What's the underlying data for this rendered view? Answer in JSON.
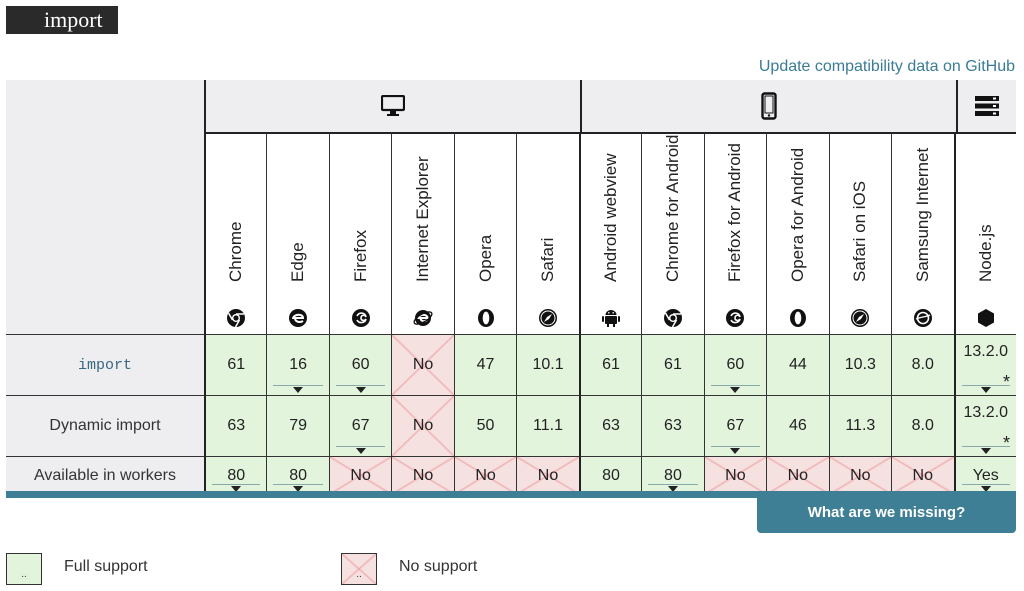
{
  "title": "import",
  "github_link": "Update compatibility data on GitHub",
  "groups": {
    "desktop_icon": "desktop-icon",
    "mobile_icon": "mobile-icon",
    "server_icon": "server-icon"
  },
  "browsers": [
    {
      "name": "Chrome",
      "icon": "chrome-icon"
    },
    {
      "name": "Edge",
      "icon": "edge-icon"
    },
    {
      "name": "Firefox",
      "icon": "firefox-icon"
    },
    {
      "name": "Internet Explorer",
      "icon": "ie-icon"
    },
    {
      "name": "Opera",
      "icon": "opera-icon"
    },
    {
      "name": "Safari",
      "icon": "safari-icon"
    },
    {
      "name": "Android webview",
      "icon": "android-icon"
    },
    {
      "name": "Chrome for Android",
      "icon": "chrome-icon"
    },
    {
      "name": "Firefox for Android",
      "icon": "firefox-icon"
    },
    {
      "name": "Opera for Android",
      "icon": "opera-icon"
    },
    {
      "name": "Safari on iOS",
      "icon": "safari-icon"
    },
    {
      "name": "Samsung Internet",
      "icon": "samsung-icon"
    },
    {
      "name": "Node.js",
      "icon": "nodejs-icon"
    }
  ],
  "rows": [
    {
      "label": "import",
      "code": true,
      "cells": [
        {
          "v": "61",
          "s": "y"
        },
        {
          "v": "16",
          "s": "y",
          "arrow": true
        },
        {
          "v": "60",
          "s": "y",
          "arrow": true
        },
        {
          "v": "No",
          "s": "n"
        },
        {
          "v": "47",
          "s": "y"
        },
        {
          "v": "10.1",
          "s": "y"
        },
        {
          "v": "61",
          "s": "y"
        },
        {
          "v": "61",
          "s": "y"
        },
        {
          "v": "60",
          "s": "y",
          "arrow": true
        },
        {
          "v": "44",
          "s": "y"
        },
        {
          "v": "10.3",
          "s": "y"
        },
        {
          "v": "8.0",
          "s": "y"
        },
        {
          "v": "13.2.0",
          "s": "y",
          "arrow": true,
          "star": "*"
        }
      ]
    },
    {
      "label": "Dynamic import",
      "code": false,
      "cells": [
        {
          "v": "63",
          "s": "y"
        },
        {
          "v": "79",
          "s": "y"
        },
        {
          "v": "67",
          "s": "y",
          "arrow": true
        },
        {
          "v": "No",
          "s": "n"
        },
        {
          "v": "50",
          "s": "y"
        },
        {
          "v": "11.1",
          "s": "y"
        },
        {
          "v": "63",
          "s": "y"
        },
        {
          "v": "63",
          "s": "y"
        },
        {
          "v": "67",
          "s": "y",
          "arrow": true
        },
        {
          "v": "46",
          "s": "y"
        },
        {
          "v": "11.3",
          "s": "y"
        },
        {
          "v": "8.0",
          "s": "y"
        },
        {
          "v": "13.2.0",
          "s": "y",
          "arrow": true,
          "star": "*"
        }
      ]
    },
    {
      "label": "Available in workers",
      "code": false,
      "cells": [
        {
          "v": "80",
          "s": "y",
          "arrow": true
        },
        {
          "v": "80",
          "s": "y",
          "arrow": true
        },
        {
          "v": "No",
          "s": "n"
        },
        {
          "v": "No",
          "s": "n"
        },
        {
          "v": "No",
          "s": "n"
        },
        {
          "v": "No",
          "s": "n"
        },
        {
          "v": "80",
          "s": "y"
        },
        {
          "v": "80",
          "s": "y",
          "arrow": true
        },
        {
          "v": "No",
          "s": "n"
        },
        {
          "v": "No",
          "s": "n"
        },
        {
          "v": "No",
          "s": "n"
        },
        {
          "v": "No",
          "s": "n"
        },
        {
          "v": "Yes",
          "s": "y",
          "arrow": true
        }
      ]
    }
  ],
  "missing_button": "What are we missing?",
  "legend": {
    "full_support": "Full support",
    "no_support": "No support",
    "box_mark": ".."
  },
  "colors": {
    "full_support_bg": "#e2f4dc",
    "no_support_bg": "#f6e1e1",
    "accent": "#3e7f96"
  }
}
